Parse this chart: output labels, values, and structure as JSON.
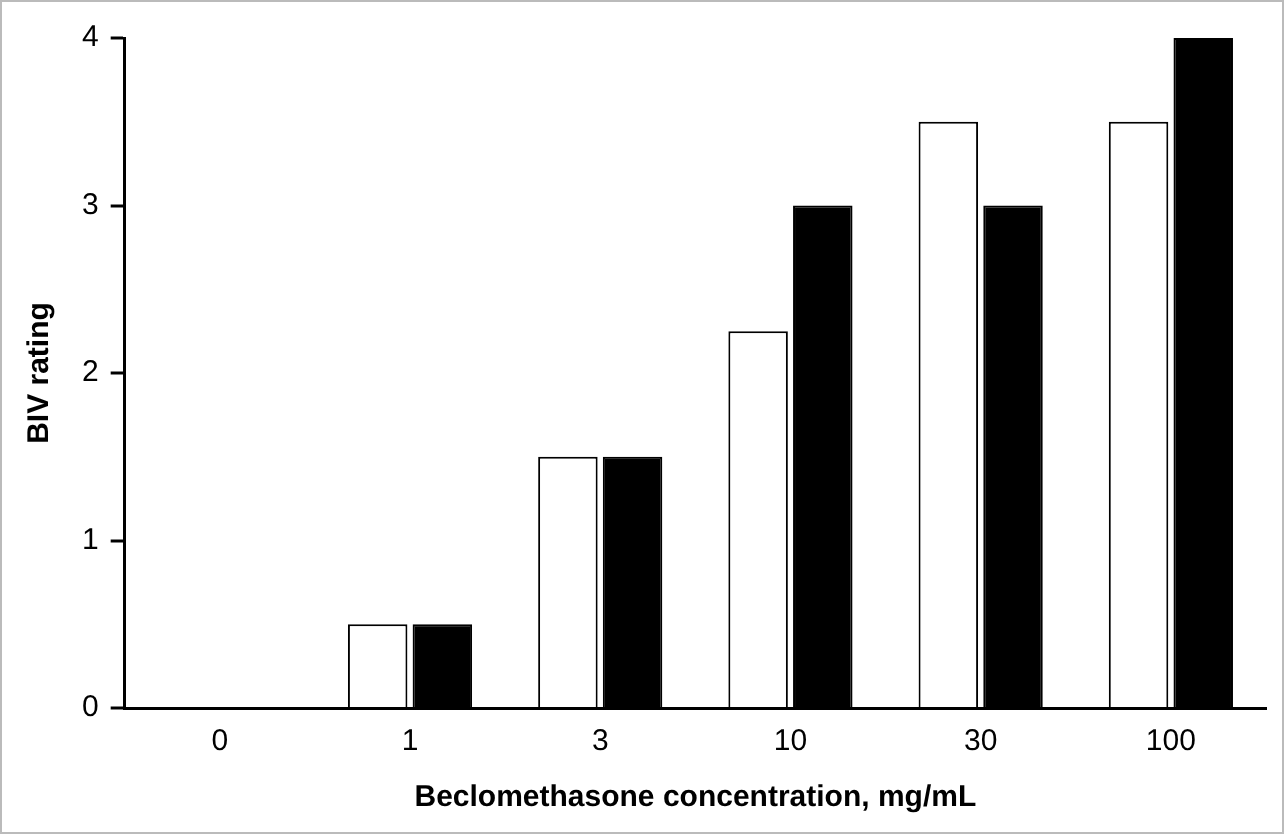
{
  "chart_data": {
    "type": "bar",
    "xlabel": "Beclomethasone concentration, mg/mL",
    "ylabel": "BIV rating",
    "categories": [
      "0",
      "1",
      "3",
      "10",
      "30",
      "100"
    ],
    "series": [
      {
        "color": "#ffffff",
        "values": [
          0,
          0.5,
          1.5,
          2.25,
          3.5,
          3.5
        ]
      },
      {
        "color": "#000000",
        "values": [
          0,
          0.5,
          1.5,
          3,
          3,
          4
        ]
      }
    ],
    "ylim": [
      0,
      4
    ],
    "yticks": [
      0,
      1,
      2,
      3,
      4
    ],
    "grid": false,
    "legend": false
  }
}
